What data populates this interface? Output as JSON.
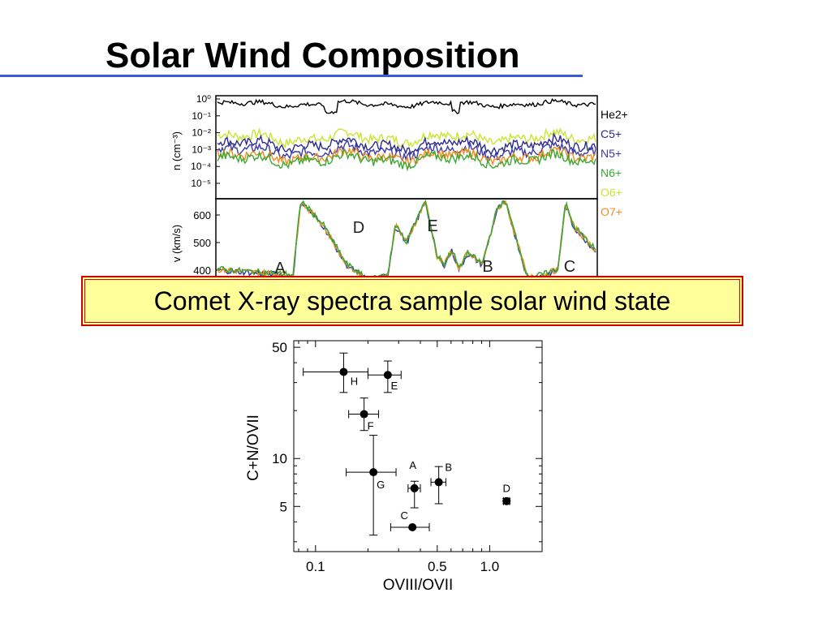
{
  "slide": {
    "title": "Solar Wind Composition",
    "callout": "Comet X-ray spectra sample solar wind state"
  },
  "colors": {
    "title_rule": "#3b5bdb",
    "He2+": "#000000",
    "C5+": "#2b2b8c",
    "N5+": "#3a3aa8",
    "N6+": "#3aa832",
    "O6+": "#c8e632",
    "O7+": "#f08c1e",
    "callout_bg": "#ffff99",
    "callout_border": "#d40000"
  },
  "chart_data": [
    {
      "type": "line",
      "panel": "density",
      "ylabel": "n (cm⁻³)",
      "yscale": "log",
      "ylim": [
        1e-05,
        1
      ],
      "yticks": [
        "10⁰",
        "10⁻¹",
        "10⁻²",
        "10⁻³",
        "10⁻⁴",
        "10⁻⁵"
      ],
      "legend": [
        "He2+",
        "C5+",
        "N5+",
        "N6+",
        "O6+",
        "O7+"
      ],
      "legend_position": "right",
      "series_levels_log10": {
        "He2+": -0.3,
        "C5+": -2.7,
        "N5+": -3.1,
        "N6+": -3.6,
        "O6+": -2.3,
        "O7+": -3.4
      }
    },
    {
      "type": "line",
      "panel": "velocity",
      "ylabel": "v (km/s)",
      "yticks": [
        600,
        500,
        400
      ],
      "ylim": [
        370,
        650
      ],
      "annotations": [
        "A",
        "D",
        "E",
        "B",
        "C"
      ],
      "profile_x": [
        0,
        0.1,
        0.2,
        0.22,
        0.28,
        0.34,
        0.4,
        0.45,
        0.47,
        0.5,
        0.55,
        0.58,
        0.6,
        0.62,
        0.64,
        0.66,
        0.7,
        0.74,
        0.76,
        0.78,
        0.82,
        0.86,
        0.9,
        0.92,
        0.94,
        1.0
      ],
      "profile_v": [
        400,
        390,
        380,
        650,
        560,
        420,
        360,
        380,
        560,
        500,
        650,
        450,
        420,
        470,
        400,
        460,
        420,
        620,
        650,
        560,
        370,
        380,
        400,
        640,
        560,
        470
      ]
    },
    {
      "type": "scatter",
      "xlabel": "OVIII/OVII",
      "ylabel": "C+N/OVII",
      "xscale": "log",
      "yscale": "log",
      "xlim": [
        0.075,
        2.0
      ],
      "ylim": [
        2.6,
        55
      ],
      "xticks": [
        "0.1",
        "0.5",
        "1.0"
      ],
      "yticks": [
        "50",
        "10",
        "5"
      ],
      "points": [
        {
          "label": "H",
          "x": 0.145,
          "y": 35,
          "xerr": [
            0.085,
            0.2
          ],
          "yerr": [
            26,
            46
          ]
        },
        {
          "label": "E",
          "x": 0.26,
          "y": 33.5,
          "xerr": [
            0.2,
            0.31
          ],
          "yerr": [
            26,
            41
          ]
        },
        {
          "label": "F",
          "x": 0.19,
          "y": 19,
          "xerr": [
            0.155,
            0.23
          ],
          "yerr": [
            15,
            24
          ]
        },
        {
          "label": "G",
          "x": 0.215,
          "y": 8.2,
          "xerr": [
            0.15,
            0.29
          ],
          "yerr": [
            3.3,
            14
          ]
        },
        {
          "label": "A",
          "x": 0.37,
          "y": 6.5,
          "xerr": [
            0.34,
            0.4
          ],
          "yerr": [
            4.9,
            7.2
          ]
        },
        {
          "label": "B",
          "x": 0.51,
          "y": 7.1,
          "xerr": [
            0.46,
            0.56
          ],
          "yerr": [
            5.2,
            8.9
          ]
        },
        {
          "label": "C",
          "x": 0.36,
          "y": 3.7,
          "xerr": [
            0.27,
            0.45
          ],
          "yerr": [
            3.7,
            3.7
          ]
        },
        {
          "label": "D",
          "x": 1.25,
          "y": 5.4,
          "xerr": [
            1.2,
            1.3
          ],
          "yerr": [
            5.2,
            5.6
          ]
        }
      ]
    }
  ]
}
